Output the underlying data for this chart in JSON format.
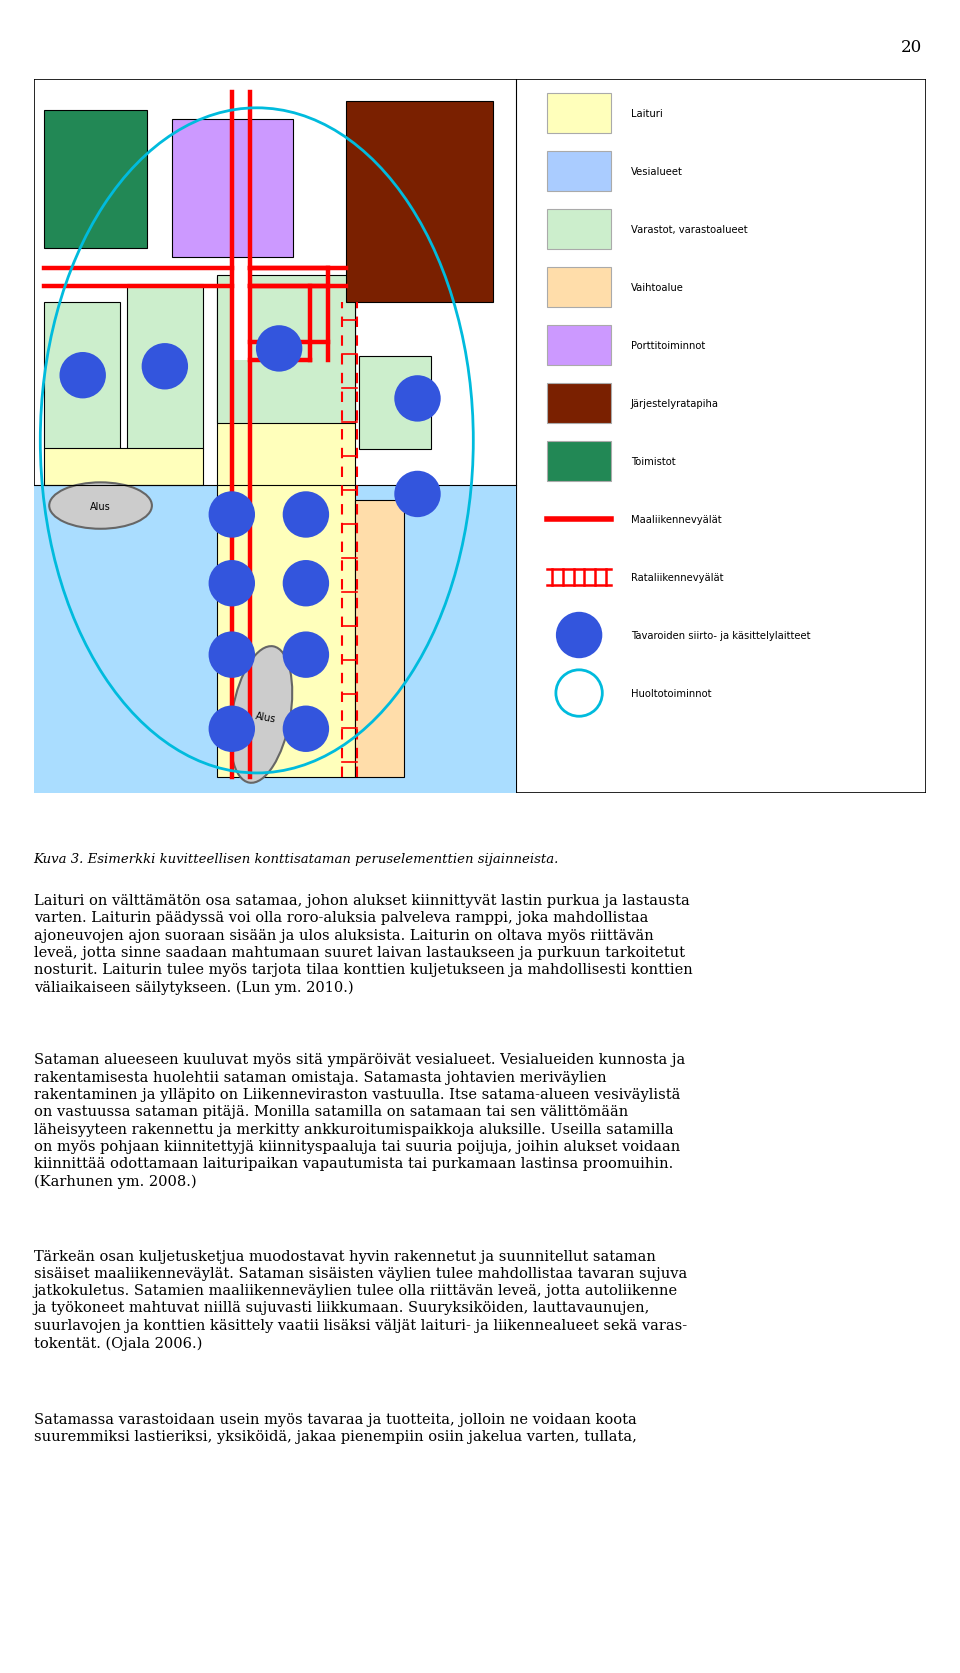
{
  "page_number": "20",
  "legend_items": [
    {
      "label": "Laituri",
      "color": "#ffffbb",
      "type": "rect"
    },
    {
      "label": "Vesialueet",
      "color": "#aaccff",
      "type": "rect"
    },
    {
      "label": "Varastot, varastoalueet",
      "color": "#cceecc",
      "type": "rect"
    },
    {
      "label": "Vaihtoalue",
      "color": "#ffddaa",
      "type": "rect"
    },
    {
      "label": "Porttitoiminnot",
      "color": "#cc99ff",
      "type": "rect"
    },
    {
      "label": "Järjestelyratapiha",
      "color": "#7a2000",
      "type": "rect"
    },
    {
      "label": "Toimistot",
      "color": "#228855",
      "type": "rect"
    },
    {
      "label": "Maaliikennevyälät",
      "color": "#ff0000",
      "type": "line_solid"
    },
    {
      "label": "Rataliikennevyälät",
      "color": "#ff0000",
      "type": "line_rail"
    },
    {
      "label": "Tavaroiden siirto- ja käsittelylaitteet",
      "color": "#3355dd",
      "type": "circle_filled"
    },
    {
      "label": "Huoltotoiminnot",
      "color": "#00bbdd",
      "type": "circle_empty"
    }
  ],
  "water_color": "#aaddff",
  "laituri_color": "#ffffbb",
  "laituri2_color": "#ffddaa",
  "storage_color": "#cceecc",
  "office_color": "#228855",
  "port_color": "#cc99ff",
  "rail_color": "#7a2000",
  "road_color": "#ff0000",
  "crane_color": "#3355dd",
  "cyan_color": "#00bbdd",
  "caption": "Kuva 3. Esimerkki kuvitteellisen konttisataman peruselementtien sijainneista.",
  "p1": "Laituri on välttämätön osa satamaa, johon alukset kiinnittyyvät lastin purkua ja lastausta\nvarten. Laiturin päädyrssä voi olla roro-aluksia palveleva ramppi, joka mahdollistaa\najoneuvojen ajon suoraan sisään ja ulos aluksista. Laiturin on oltava myös riittävän\nleveä, jotta sinne saadaan mahtumaan suuret laivan lastaukseen ja purkuun tarkoitetut\nnosturit. Laiturin tulee myös tarjota tilaa konttien kuljetukseen ja mahdollisesti konttien\nväliaikaiseen säilytykseen. (Lun ym. 2010.)",
  "p2": "Sataman alueeseen kuuluvat myös sitä ympäröivät vesialueet. Vesialueiden kunnosta ja\nrakentamisesta huolehtii sataman omistaja. Satamasta johtavien meriväylien\nrakentaminen ja ylläpito on Liikenneviraston vastuulla. Itse satama-alueen vesiväylistä\non vastuussa sataman pitäjä. Monilla satamilla on satamaan tai sen välittömään\nläheisyyteen rakennettu ja merkitty ankkuroitumispaikkoja aluksille. Useilla satamilla\non myös pohjaan kiinnitettryjä kiinnityspaaluja tai suuria poijuja, joihin alukset voidaan\nkiinnittää odottamaan laituripaikan vapautumista tai purkamaan lastinsa proomuihin.\n(Karhunen ym. 2008.)",
  "p3": "Tärkeän osan kuljetusketjua muodostavat hyvin rakennetut ja suunnitellut sataman\nsisäiset maaliikennevyälät. Sataman sisäisten väylien tulee mahdollistaa tavaran sujuva\njatkokuletus. Satamien maaliikennevyäylien tulee olla riittävän leveä, jotta autoliikenne\nja työkoneet mahtuvat niillä sujuvasti liikkumaan. Suuryksiköiden, lauttavaunujen,\nsuurlavojen ja konttien käsittely vaatii lisäksi väljät laituri- ja liikennealueet sekä varas-\ntokentät. (Ojala 2006.)",
  "p4": "Satamassa varastoidaan usein myös tavaraa ja tuotteita, jolloin ne voidaan koota\nsuuremmiksi lastieriksi, yksiköidä, jakaa pienempiin osiin jakelua varten, tullata,"
}
